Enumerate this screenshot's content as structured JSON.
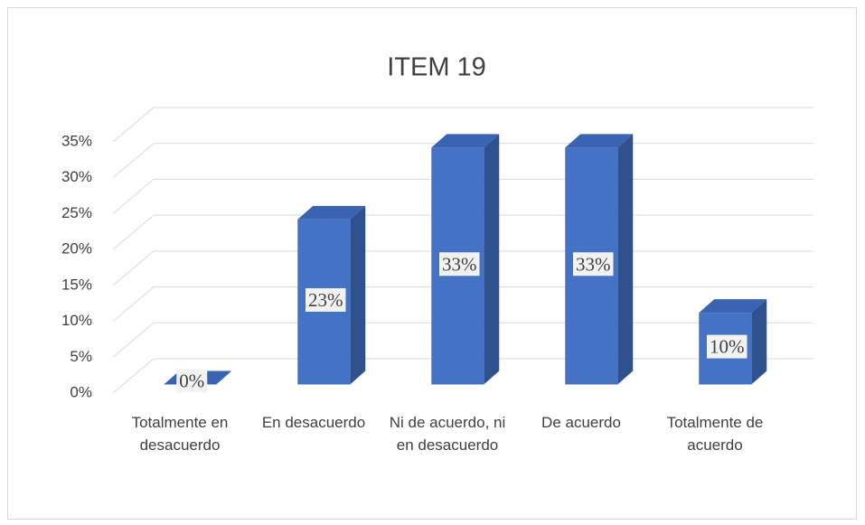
{
  "chart_data": {
    "type": "bar3d",
    "title": "ITEM 19",
    "categories": [
      "Totalmente en desacuerdo",
      "En desacuerdo",
      "Ni de acuerdo, ni en desacuerdo",
      "De acuerdo",
      "Totalmente de acuerdo"
    ],
    "values": [
      0,
      23,
      33,
      33,
      10
    ],
    "value_labels": [
      "0%",
      "23%",
      "33%",
      "33%",
      "10%"
    ],
    "color": "#4472c4",
    "ylim": [
      0,
      35
    ],
    "yticks": [
      {
        "value": 0,
        "label": "0%"
      },
      {
        "value": 5,
        "label": "5%"
      },
      {
        "value": 10,
        "label": "10%"
      },
      {
        "value": 15,
        "label": "15%"
      },
      {
        "value": 20,
        "label": "20%"
      },
      {
        "value": 25,
        "label": "25%"
      },
      {
        "value": 30,
        "label": "30%"
      },
      {
        "value": 35,
        "label": "35%"
      }
    ],
    "grid": true
  }
}
